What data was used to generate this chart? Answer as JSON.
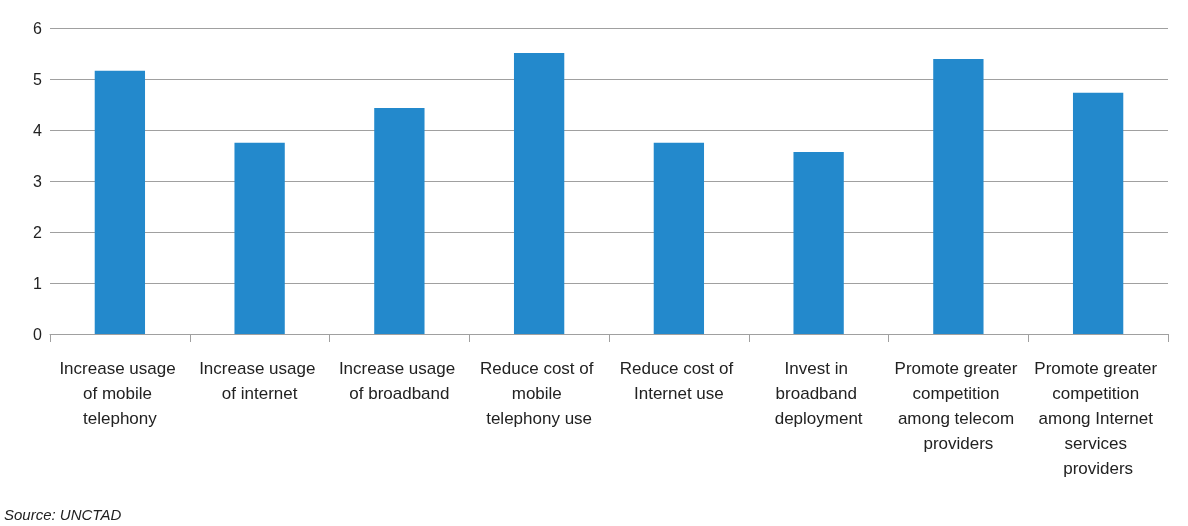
{
  "chart_data": {
    "type": "bar",
    "categories": [
      "Increase usage of mobile telephony",
      "Increase usage of internet",
      "Increase usage of broadband",
      "Reduce cost of mobile telephony use",
      "Reduce cost of Internet use",
      "Invest in broadband deployment",
      "Promote greater competition among telecom providers",
      "Promote greater competition among Internet services providers"
    ],
    "values": [
      5.16,
      3.75,
      4.43,
      5.51,
      3.75,
      3.57,
      5.39,
      4.73
    ],
    "color": "#2389cc",
    "ylim": [
      0,
      6
    ],
    "yticks": [
      0,
      1,
      2,
      3,
      4,
      5,
      6
    ],
    "grid": "y",
    "annotations": [
      "Source: UNCTAD"
    ]
  }
}
